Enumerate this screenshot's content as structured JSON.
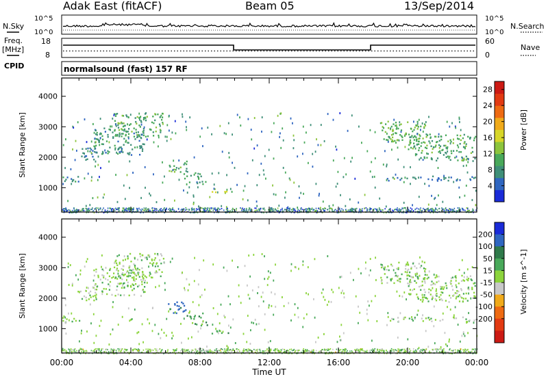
{
  "header": {
    "station": "Adak East (fitACF)",
    "beam": "Beam 05",
    "date": "13/Sep/2014"
  },
  "left_labels": {
    "nsky": "N.Sky",
    "freq_line1": "Freq.",
    "freq_line2": "[MHz]",
    "cpid": "CPID"
  },
  "right_labels": {
    "nsearch": "N.Search",
    "nave": "Nave"
  },
  "cpid_text": "normalsound (fast) 157 RF",
  "noise_axis": {
    "top": "10^5",
    "bottom": "10^0"
  },
  "freq_axis": {
    "top": "18",
    "bottom": "8"
  },
  "nave_axis": {
    "top": "60",
    "bottom": "0"
  },
  "time_axis": {
    "label": "Time UT",
    "ticks": [
      "00:00",
      "04:00",
      "08:00",
      "12:00",
      "16:00",
      "20:00",
      "00:00"
    ]
  },
  "chart_data": [
    {
      "type": "heatmap",
      "title": "Power",
      "ylabel": "Slant Range [km]",
      "xlabel": "Time UT",
      "yticks": [
        "1000",
        "2000",
        "3000",
        "4000"
      ],
      "ylim": [
        200,
        4600
      ],
      "xlim_hours": [
        0,
        24
      ],
      "colorbar": {
        "label": "Power [dB]",
        "ticks": [
          "4",
          "8",
          "12",
          "16",
          "20",
          "24",
          "28"
        ],
        "range": [
          0,
          30
        ],
        "colors": [
          "#1a2bd8",
          "#2f66c0",
          "#3f8f78",
          "#49a95a",
          "#8cc43c",
          "#d7d628",
          "#f0aa1a",
          "#ee6a12",
          "#e23a12",
          "#cc1a14"
        ]
      },
      "regions": [
        {
          "t0": 0.9,
          "t1": 2.0,
          "r0": 1900,
          "r1": 2350,
          "power": 6
        },
        {
          "t0": 1.8,
          "t1": 4.8,
          "r0": 2100,
          "r1": 3000,
          "power": 8
        },
        {
          "t0": 3.0,
          "t1": 5.9,
          "r0": 2700,
          "r1": 3500,
          "power": 10
        },
        {
          "t0": 0.0,
          "t1": 1.2,
          "r0": 1200,
          "r1": 1400,
          "power": 7
        },
        {
          "t0": 6.1,
          "t1": 7.2,
          "r0": 1500,
          "r1": 1900,
          "power": 10
        },
        {
          "t0": 7.0,
          "t1": 8.2,
          "r0": 1300,
          "r1": 1550,
          "power": 9
        },
        {
          "t0": 7.2,
          "t1": 8.4,
          "r0": 1100,
          "r1": 1250,
          "power": 8
        },
        {
          "t0": 8.6,
          "t1": 9.7,
          "r0": 850,
          "r1": 980,
          "power": 14
        },
        {
          "t0": 18.4,
          "t1": 21.0,
          "r0": 2500,
          "r1": 3200,
          "power": 12
        },
        {
          "t0": 20.0,
          "t1": 23.9,
          "r0": 1900,
          "r1": 2800,
          "power": 10
        },
        {
          "t0": 18.8,
          "t1": 23.9,
          "r0": 1250,
          "r1": 1400,
          "power": 6
        }
      ]
    },
    {
      "type": "heatmap",
      "title": "Velocity",
      "ylabel": "Slant Range [km]",
      "xlabel": "Time UT",
      "yticks": [
        "1000",
        "2000",
        "3000",
        "4000"
      ],
      "ylim": [
        200,
        4600
      ],
      "xlim_hours": [
        0,
        24
      ],
      "colorbar": {
        "label": "Velocity [m s^-1]",
        "ticks": [
          "200",
          "100",
          "50",
          "15",
          "-15",
          "-50",
          "-100",
          "-200"
        ],
        "colors": [
          "#1a2bd8",
          "#2f66c0",
          "#2f7a4a",
          "#49a95a",
          "#8cd43c",
          "#c8c8c8",
          "#f0aa1a",
          "#ee6a12",
          "#e23a12",
          "#cc1a14"
        ]
      },
      "regions": [
        {
          "t0": 0.9,
          "t1": 2.0,
          "r0": 1900,
          "r1": 2350,
          "vel": 0
        },
        {
          "t0": 1.8,
          "t1": 4.8,
          "r0": 2100,
          "r1": 3000,
          "vel": 0
        },
        {
          "t0": 3.0,
          "t1": 5.9,
          "r0": 2700,
          "r1": 3500,
          "vel": 0
        },
        {
          "t0": 0.0,
          "t1": 1.2,
          "r0": 1200,
          "r1": 1400,
          "vel": 0
        },
        {
          "t0": 6.1,
          "t1": 7.2,
          "r0": 1500,
          "r1": 1900,
          "vel": 120
        },
        {
          "t0": 7.0,
          "t1": 8.2,
          "r0": 1300,
          "r1": 1550,
          "vel": 40
        },
        {
          "t0": 7.2,
          "t1": 8.4,
          "r0": 1100,
          "r1": 1250,
          "vel": 40
        },
        {
          "t0": 8.6,
          "t1": 9.7,
          "r0": 850,
          "r1": 980,
          "vel": 30
        },
        {
          "t0": 18.4,
          "t1": 21.0,
          "r0": 2500,
          "r1": 3200,
          "vel": 0
        },
        {
          "t0": 20.0,
          "t1": 23.9,
          "r0": 1900,
          "r1": 2800,
          "vel": 0
        },
        {
          "t0": 18.8,
          "t1": 23.9,
          "r0": 1250,
          "r1": 1400,
          "vel": 0
        }
      ]
    }
  ]
}
